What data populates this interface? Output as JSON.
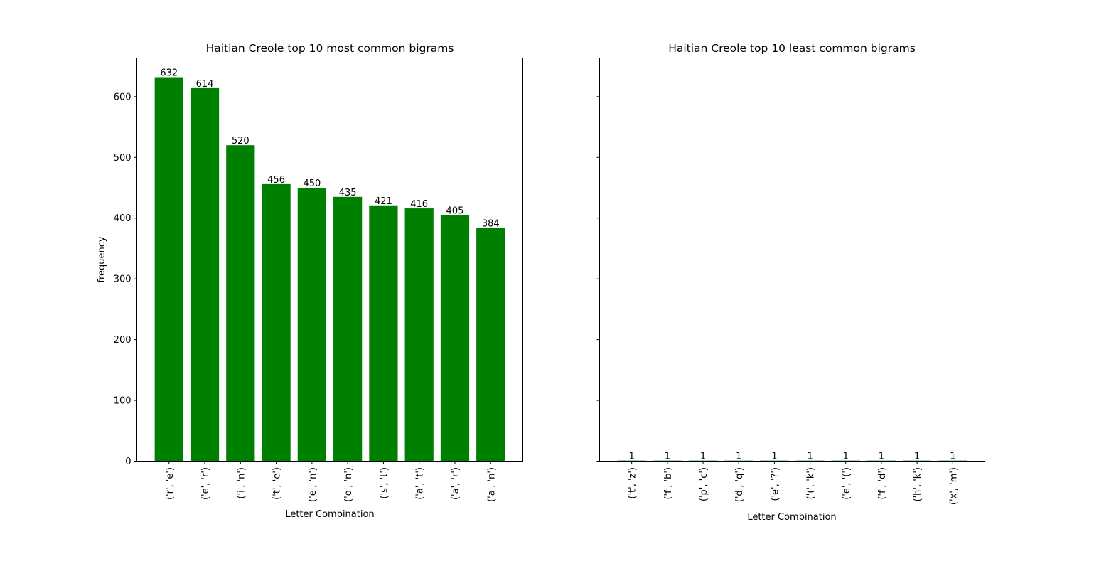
{
  "colors": {
    "bar": "#008000",
    "axis": "#000000",
    "background": "#ffffff"
  },
  "chart_data": [
    {
      "type": "bar",
      "title": "Haitian Creole top 10 most common bigrams",
      "xlabel": "Letter Combination",
      "ylabel": "frequency",
      "categories": [
        "('r', 'e')",
        "('e', 'r')",
        "('i', 'n')",
        "('t', 'e')",
        "('e', 'n')",
        "('o', 'n')",
        "('s', 't')",
        "('a', 't')",
        "('a', 'r')",
        "('a', 'n')"
      ],
      "values": [
        632,
        614,
        520,
        456,
        450,
        435,
        421,
        416,
        405,
        384
      ],
      "ylim": [
        0,
        663.6
      ],
      "yticks": [
        0,
        100,
        200,
        300,
        400,
        500,
        600
      ],
      "show_ytick_labels": true,
      "grid": false
    },
    {
      "type": "bar",
      "title": "Haitian Creole top 10 least common bigrams",
      "xlabel": "Letter Combination",
      "ylabel": "",
      "categories": [
        "('t', 'z')",
        "('f', 'b')",
        "('p', 'c')",
        "('d', 'q')",
        "('e', '?')",
        "('(', 'k')",
        "('e', '(')",
        "('f', 'd')",
        "('h', 'k')",
        "('x', 'm')"
      ],
      "values": [
        1,
        1,
        1,
        1,
        1,
        1,
        1,
        1,
        1,
        1
      ],
      "ylim": [
        0,
        663.6
      ],
      "yticks": [
        0,
        100,
        200,
        300,
        400,
        500,
        600
      ],
      "show_ytick_labels": false,
      "grid": false
    }
  ]
}
